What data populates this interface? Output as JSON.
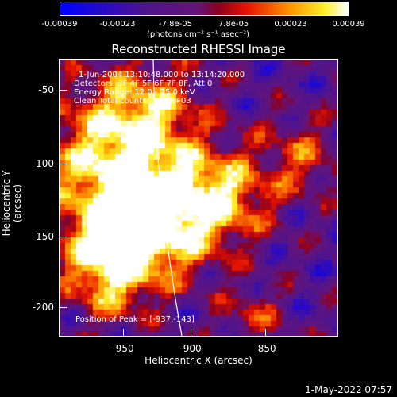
{
  "colorbar": {
    "ticks": [
      "-0.00039",
      "-0.00023",
      "-7.8e-05",
      "7.8e-05",
      "0.00023",
      "0.00039"
    ],
    "units": "(photons cm⁻² s⁻¹ asec⁻²)"
  },
  "plot": {
    "title": "Reconstructed RHESSI Image",
    "info": [
      "1-Jun-2004 13:10:48.000 to 13:14:20.000",
      "Detectors: 3F 4F 5F 6F 7F 8F, Att 0",
      "Energy Range: 12.0 - 25.0 keV",
      "Clean    Total counts: 3.23E+03"
    ],
    "peak_label": "Position of Peak = [-937,-143]",
    "xlabel": "Heliocentric X (arcsec)",
    "ylabel": "Heliocentric Y (arcsec)",
    "xticks": [
      "-950",
      "-900",
      "-850"
    ],
    "yticks": [
      "-50",
      "-100",
      "-150",
      "-200"
    ],
    "colors": {
      "low": "#0000ff",
      "mid": "#5a1a8a",
      "high": "#ffffff"
    }
  },
  "timestamp": "1-May-2022 07:57"
}
